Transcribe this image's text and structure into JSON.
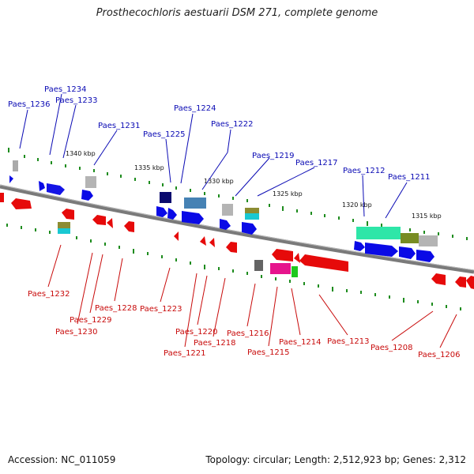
{
  "title": "Prosthecochloris aestuarii DSM 271, complete genome",
  "footer": {
    "accession": "Accession: NC_011059",
    "topology": "Topology: circular; Length: 2,512,923 bp; Genes: 2,312"
  },
  "colors": {
    "top_label": "#0a0ab4",
    "bottom_label": "#c80a0a",
    "backbone": "#7a7a7a",
    "tick": "#1e8c1e"
  },
  "kbp_markers": [
    "1340 kbp",
    "1335 kbp",
    "1330 kbp",
    "1325 kbp",
    "1320 kbp",
    "1315 kbp"
  ],
  "top_labels": [
    "Paes_1236",
    "Paes_1234",
    "Paes_1233",
    "Paes_1231",
    "Paes_1225",
    "Paes_1224",
    "Paes_1222",
    "Paes_1219",
    "Paes_1217",
    "Paes_1212",
    "Paes_1211"
  ],
  "bottom_labels": [
    "Paes_1232",
    "Paes_1230",
    "Paes_1229",
    "Paes_1228",
    "Paes_1223",
    "Paes_1221",
    "Paes_1220",
    "Paes_1218",
    "Paes_1216",
    "Paes_1215",
    "Paes_1214",
    "Paes_1213",
    "Paes_1208",
    "Paes_1206"
  ]
}
